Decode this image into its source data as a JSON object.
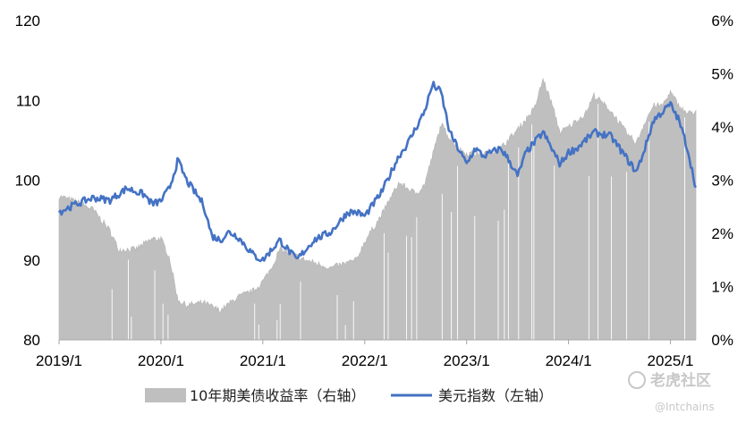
{
  "chart_data": {
    "type": "line",
    "x_ticks": [
      "2019/1",
      "2020/1",
      "2021/1",
      "2022/1",
      "2023/1",
      "2024/1",
      "2025/1"
    ],
    "y_left": {
      "ticks": [
        80,
        90,
        100,
        110,
        120
      ],
      "lim": [
        80,
        120
      ]
    },
    "y_right": {
      "ticks": [
        "0%",
        "1%",
        "2%",
        "3%",
        "4%",
        "5%",
        "6%"
      ],
      "lim": [
        0,
        6
      ]
    },
    "x_range": [
      "2019-01",
      "2025-04"
    ],
    "grid": false,
    "legend_position": "bottom",
    "series": [
      {
        "name": "10年期美债收益率（右轴）",
        "type": "area",
        "axis": "right",
        "color": "#bfbfbf",
        "x": [
          "2019-01",
          "2019-03",
          "2019-05",
          "2019-07",
          "2019-08",
          "2019-10",
          "2019-12",
          "2020-01",
          "2020-02",
          "2020-03",
          "2020-04",
          "2020-06",
          "2020-08",
          "2020-10",
          "2020-12",
          "2021-01",
          "2021-02",
          "2021-03",
          "2021-06",
          "2021-09",
          "2021-12",
          "2022-01",
          "2022-03",
          "2022-05",
          "2022-07",
          "2022-08",
          "2022-10",
          "2022-11",
          "2022-12",
          "2023-01",
          "2023-03",
          "2023-05",
          "2023-07",
          "2023-09",
          "2023-10",
          "2023-11",
          "2023-12",
          "2024-01",
          "2024-03",
          "2024-04",
          "2024-06",
          "2024-08",
          "2024-09",
          "2024-10",
          "2024-11",
          "2024-12",
          "2025-01",
          "2025-02",
          "2025-03",
          "2025-04"
        ],
        "values": [
          2.7,
          2.6,
          2.45,
          2.05,
          1.7,
          1.7,
          1.9,
          1.9,
          1.55,
          0.75,
          0.65,
          0.7,
          0.55,
          0.8,
          0.93,
          1.1,
          1.35,
          1.7,
          1.5,
          1.35,
          1.5,
          1.85,
          2.35,
          2.95,
          2.75,
          2.9,
          4.05,
          3.8,
          3.6,
          3.5,
          3.5,
          3.6,
          3.95,
          4.35,
          4.9,
          4.45,
          3.9,
          4.0,
          4.25,
          4.6,
          4.3,
          3.85,
          3.7,
          4.1,
          4.4,
          4.4,
          4.65,
          4.4,
          4.25,
          4.3
        ]
      },
      {
        "name": "美元指数（左轴）",
        "type": "line",
        "axis": "left",
        "color": "#4472c4",
        "x": [
          "2019-01",
          "2019-03",
          "2019-05",
          "2019-07",
          "2019-09",
          "2019-11",
          "2019-12",
          "2020-01",
          "2020-02",
          "2020-03",
          "2020-04",
          "2020-05",
          "2020-06",
          "2020-07",
          "2020-08",
          "2020-09",
          "2020-10",
          "2020-12",
          "2021-01",
          "2021-03",
          "2021-05",
          "2021-07",
          "2021-09",
          "2021-11",
          "2021-12",
          "2022-01",
          "2022-03",
          "2022-05",
          "2022-06",
          "2022-08",
          "2022-09",
          "2022-10",
          "2022-11",
          "2022-12",
          "2023-01",
          "2023-02",
          "2023-03",
          "2023-05",
          "2023-06",
          "2023-07",
          "2023-08",
          "2023-10",
          "2023-12",
          "2024-01",
          "2024-02",
          "2024-04",
          "2024-06",
          "2024-07",
          "2024-09",
          "2024-10",
          "2024-11",
          "2025-01",
          "2025-02",
          "2025-03",
          "2025-04"
        ],
        "values": [
          96,
          97,
          97.8,
          97.5,
          99,
          98.2,
          97,
          97.4,
          99,
          102.5,
          100,
          98.5,
          97,
          93,
          92.5,
          93.5,
          93,
          90.5,
          90,
          92.5,
          90,
          92.5,
          93.5,
          96,
          96,
          95.5,
          98.5,
          103,
          104.5,
          108.5,
          112,
          111,
          106,
          104,
          102,
          104,
          103,
          104,
          102.5,
          100.5,
          103.5,
          106,
          102,
          103.5,
          104,
          106,
          105.5,
          104,
          101,
          104,
          107.5,
          109.5,
          107.5,
          104,
          99
        ]
      }
    ]
  },
  "legend": {
    "items": [
      {
        "label": "10年期美债收益率（右轴）",
        "swatch": "area",
        "color": "#bfbfbf"
      },
      {
        "label": "美元指数（左轴）",
        "swatch": "line",
        "color": "#4472c4"
      }
    ]
  },
  "watermark": {
    "brand": "老虎社区",
    "handle": "@Intchains"
  }
}
